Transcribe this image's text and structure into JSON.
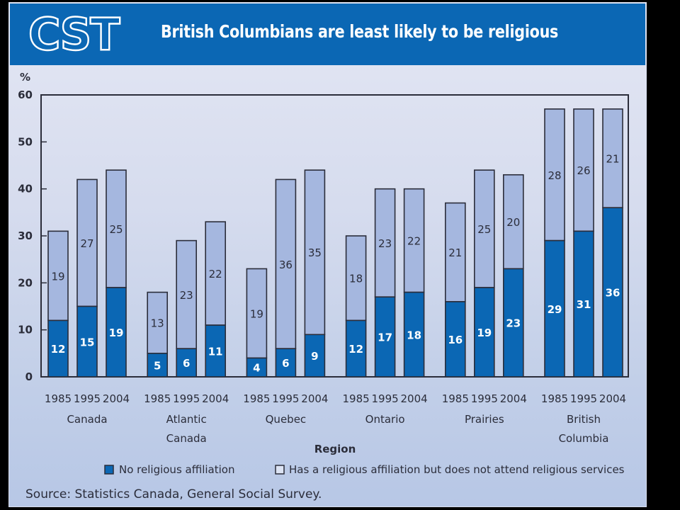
{
  "header": {
    "logo_text": "CST",
    "title": "British Columbians are least likely to be religious"
  },
  "colors": {
    "header_bg": "#0b67b4",
    "no_affiliation": "#0b67b4",
    "affiliation_no_attend": "#a5b7df",
    "axis": "#2b2d3a"
  },
  "source": "Source: Statistics Canada, General Social Survey.",
  "chart_data": {
    "type": "bar",
    "stacked": true,
    "title": "British Columbians are least likely to be religious",
    "ylabel": "%",
    "xlabel": "Region",
    "ylim": [
      0,
      60
    ],
    "yticks": [
      0,
      10,
      20,
      30,
      40,
      50,
      60
    ],
    "grid": false,
    "legend_position": "bottom",
    "groups": [
      {
        "label_lines": [
          "Canada"
        ],
        "years": [
          "1985",
          "1995",
          "2004"
        ]
      },
      {
        "label_lines": [
          "Atlantic",
          "Canada"
        ],
        "years": [
          "1985",
          "1995",
          "2004"
        ]
      },
      {
        "label_lines": [
          "Quebec"
        ],
        "years": [
          "1985",
          "1995",
          "2004"
        ]
      },
      {
        "label_lines": [
          "Ontario"
        ],
        "years": [
          "1985",
          "1995",
          "2004"
        ]
      },
      {
        "label_lines": [
          "Prairies"
        ],
        "years": [
          "1985",
          "1995",
          "2004"
        ]
      },
      {
        "label_lines": [
          "British",
          "Columbia"
        ],
        "years": [
          "1985",
          "1995",
          "2004"
        ]
      }
    ],
    "series": [
      {
        "name": "No religious affiliation",
        "values": [
          [
            12,
            15,
            19
          ],
          [
            5,
            6,
            11
          ],
          [
            4,
            6,
            9
          ],
          [
            12,
            17,
            18
          ],
          [
            16,
            19,
            23
          ],
          [
            29,
            31,
            36
          ]
        ]
      },
      {
        "name": "Has a religious affiliation but does not attend religious services",
        "values": [
          [
            19,
            27,
            25
          ],
          [
            13,
            23,
            22
          ],
          [
            19,
            36,
            35
          ],
          [
            18,
            23,
            22
          ],
          [
            21,
            25,
            20
          ],
          [
            28,
            26,
            21
          ]
        ]
      }
    ]
  }
}
